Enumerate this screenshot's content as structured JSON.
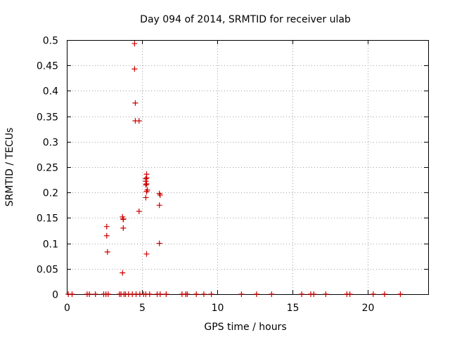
{
  "chart_data": {
    "type": "scatter",
    "title": "Day 094 of 2014, SRMTID for receiver ulab",
    "xlabel": "GPS time / hours",
    "ylabel": "SRMTID / TECUs",
    "xlim": [
      0,
      24
    ],
    "ylim": [
      0,
      0.5
    ],
    "xticks": [
      0,
      5,
      10,
      15,
      20
    ],
    "xtick_labels": [
      "0",
      "5",
      "10",
      "15",
      "20"
    ],
    "yticks": [
      0,
      0.05,
      0.1,
      0.15,
      0.2,
      0.25,
      0.3,
      0.35,
      0.4,
      0.45,
      0.5
    ],
    "ytick_labels": [
      "0",
      "0.05",
      "0.1",
      "0.15",
      "0.2",
      "0.25",
      "0.3",
      "0.35",
      "0.4",
      "0.45",
      "0.5"
    ],
    "grid": true,
    "marker": "+",
    "marker_color": "#cc0000",
    "series": [
      {
        "name": "SRMTID",
        "x": [
          4.5,
          4.5,
          4.55,
          4.55,
          4.8,
          5.3,
          5.3,
          5.25,
          5.3,
          5.25,
          5.35,
          5.3,
          5.25,
          5.25,
          6.15,
          6.2,
          6.15,
          4.8,
          3.7,
          3.75,
          3.75,
          2.65,
          2.65,
          3.75,
          6.15,
          2.7,
          5.3,
          3.7,
          0.1,
          0.35,
          1.35,
          1.5,
          1.9,
          2.45,
          2.6,
          2.75,
          3.5,
          3.6,
          3.8,
          3.9,
          4.1,
          4.35,
          4.6,
          4.85,
          5.1,
          5.25,
          5.5,
          6.0,
          6.2,
          6.6,
          7.65,
          7.9,
          8.0,
          8.6,
          9.1,
          9.6,
          11.6,
          12.6,
          13.6,
          15.6,
          16.2,
          16.4,
          17.2,
          18.6,
          18.8,
          20.35,
          21.1,
          22.15
        ],
        "y": [
          0.493,
          0.443,
          0.376,
          0.341,
          0.341,
          0.236,
          0.229,
          0.222,
          0.217,
          0.215,
          0.205,
          0.202,
          0.19,
          0.227,
          0.198,
          0.195,
          0.175,
          0.163,
          0.152,
          0.148,
          0.147,
          0.133,
          0.115,
          0.13,
          0.1,
          0.083,
          0.079,
          0.042,
          0,
          0,
          0,
          0,
          0,
          0,
          0,
          0,
          0,
          0,
          0,
          0,
          0,
          0,
          0,
          0,
          0,
          0,
          0,
          0,
          0,
          0,
          0,
          0,
          0,
          0,
          0,
          0,
          0,
          0,
          0,
          0,
          0,
          0,
          0,
          0,
          0,
          0,
          0,
          0
        ]
      }
    ]
  }
}
